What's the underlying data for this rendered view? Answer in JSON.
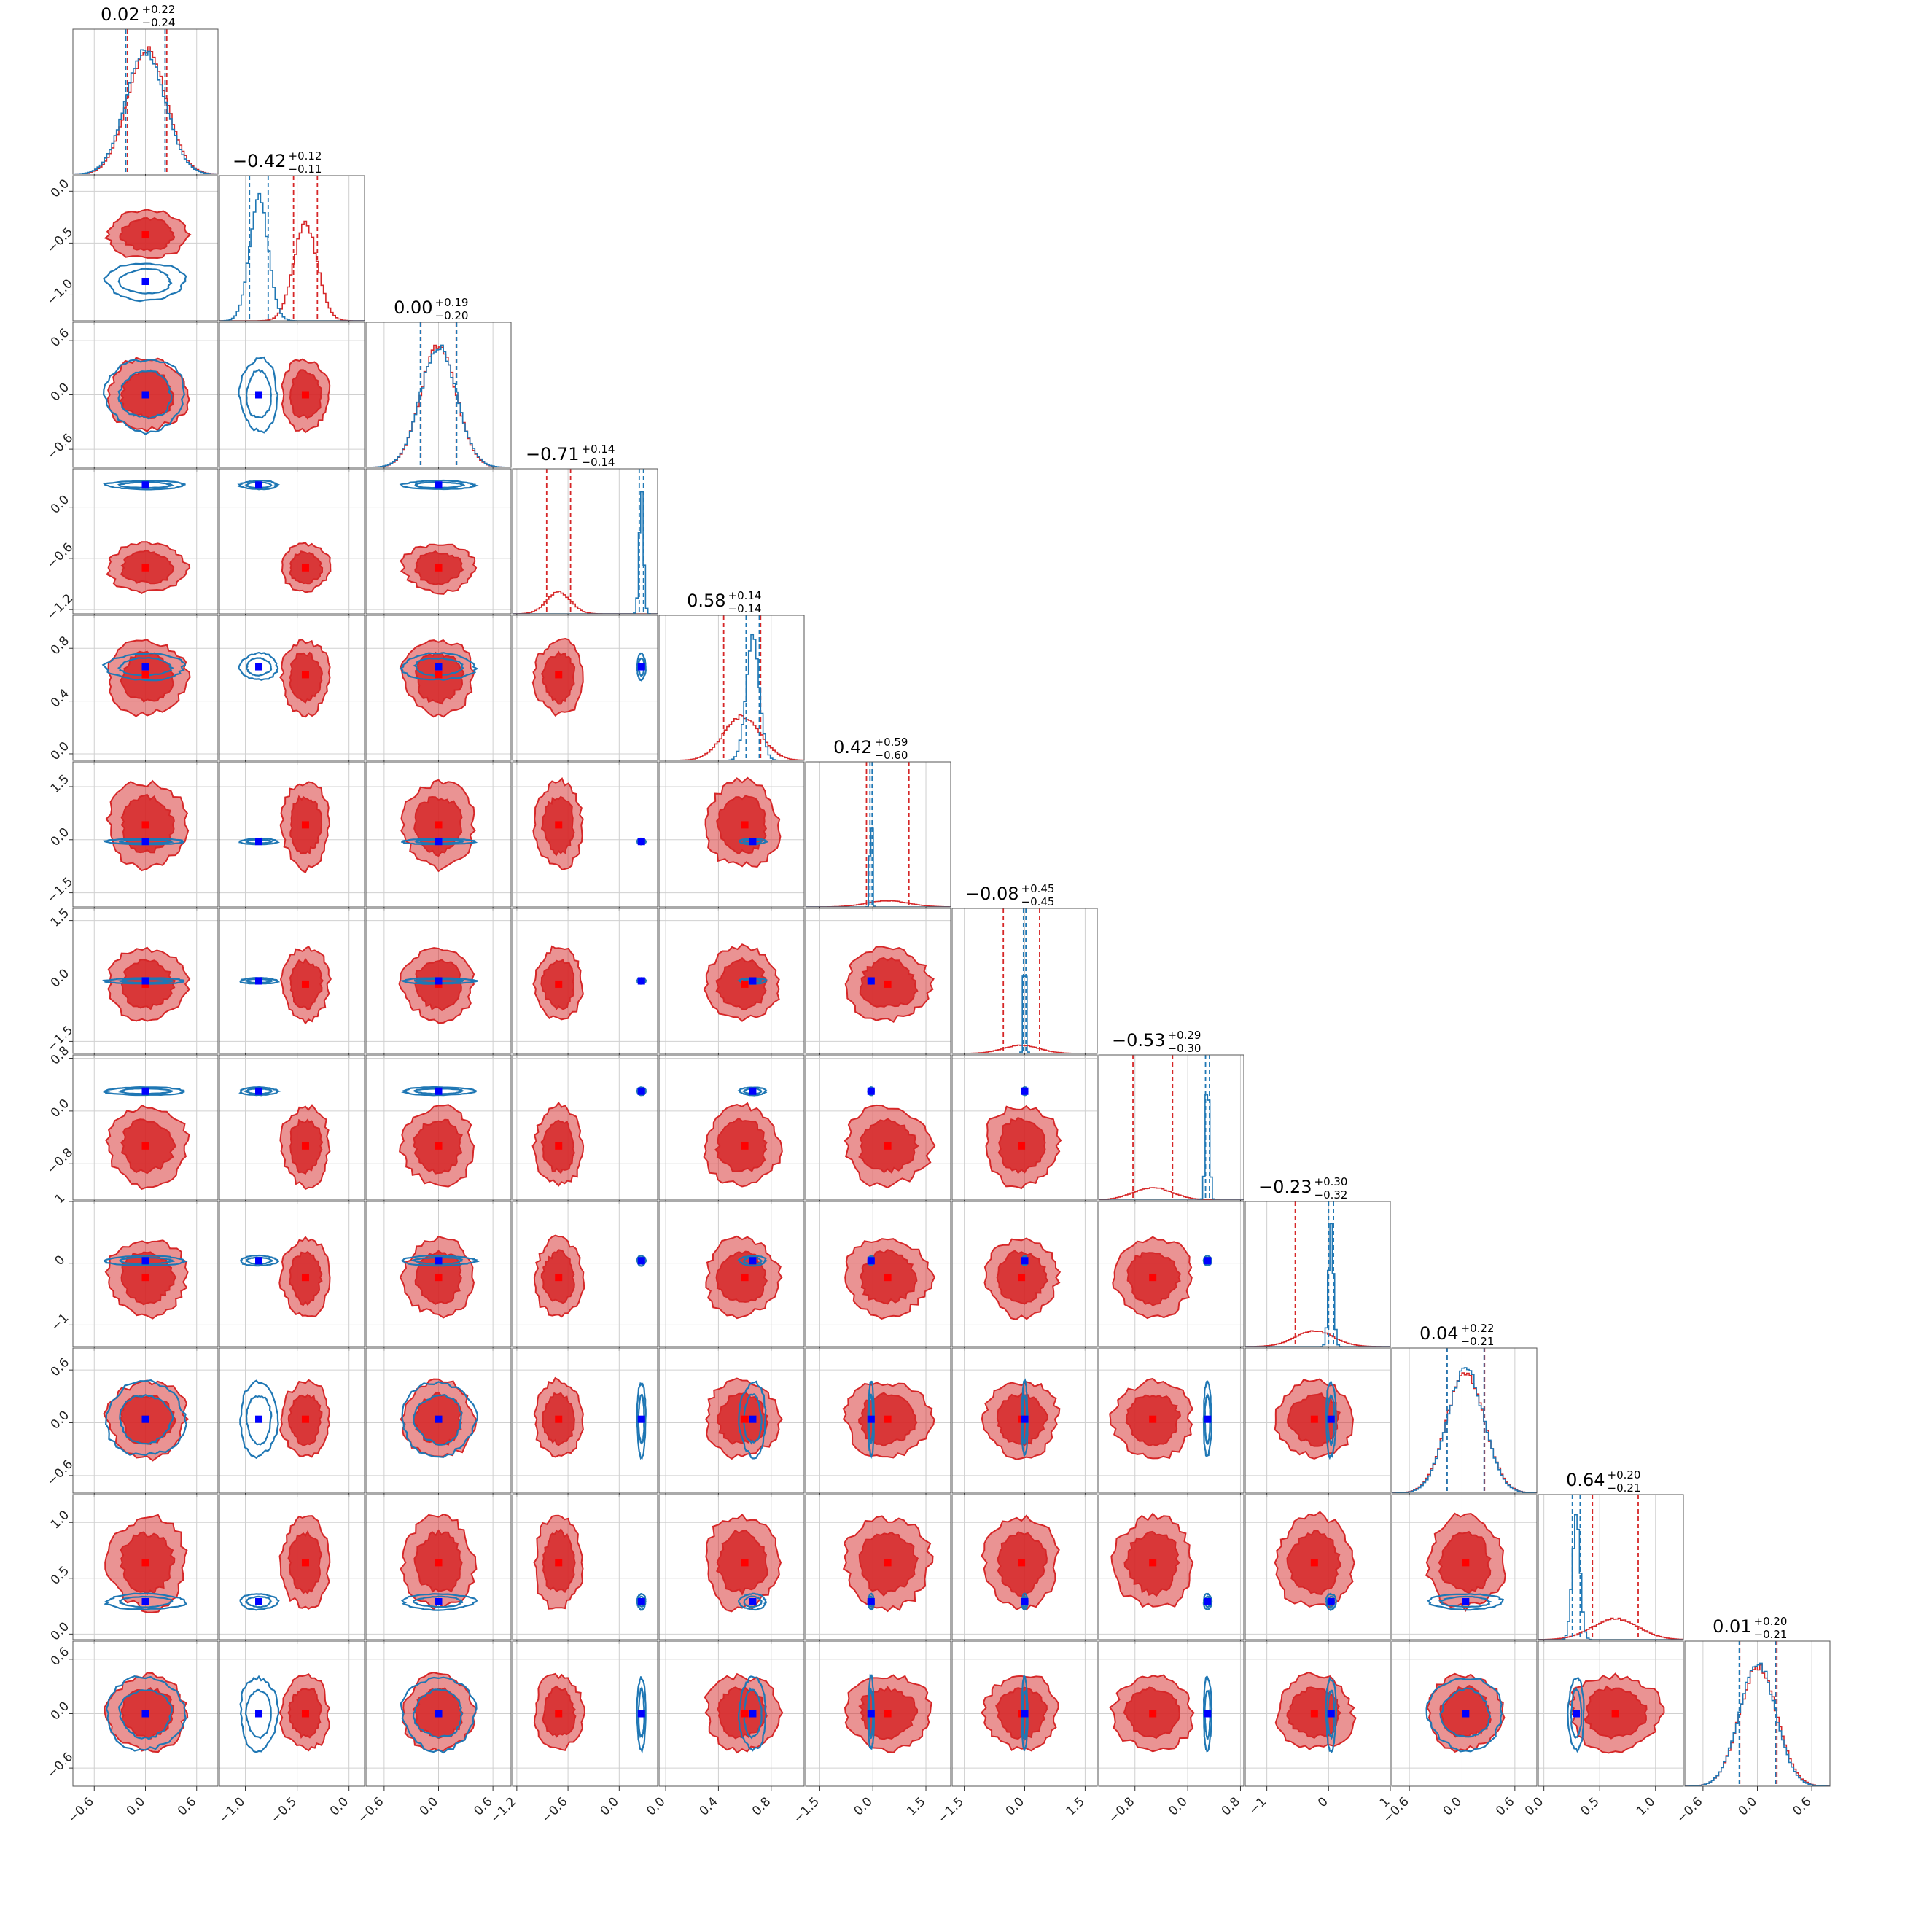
{
  "chart_data": {
    "type": "corner",
    "n_params": 12,
    "colors": {
      "series_a": "#d62728",
      "series_b": "#1f77b4",
      "truth_a": "#ff0000",
      "truth_b": "#0000ff",
      "grid": "#d0d0d0"
    },
    "titles": [
      {
        "value": "0.02",
        "plus": "+0.22",
        "minus": "−0.24"
      },
      {
        "value": "−0.42",
        "plus": "+0.12",
        "minus": "−0.11"
      },
      {
        "value": "0.00",
        "plus": "+0.19",
        "minus": "−0.20"
      },
      {
        "value": "−0.71",
        "plus": "+0.14",
        "minus": "−0.14"
      },
      {
        "value": "0.58",
        "plus": "+0.14",
        "minus": "−0.14"
      },
      {
        "value": "0.42",
        "plus": "+0.59",
        "minus": "−0.60"
      },
      {
        "value": "−0.08",
        "plus": "+0.45",
        "minus": "−0.45"
      },
      {
        "value": "−0.53",
        "plus": "+0.29",
        "minus": "−0.30"
      },
      {
        "value": "−0.23",
        "plus": "+0.30",
        "minus": "−0.32"
      },
      {
        "value": "0.04",
        "plus": "+0.22",
        "minus": "−0.21"
      },
      {
        "value": "0.64",
        "plus": "+0.20",
        "minus": "−0.21"
      },
      {
        "value": "0.01",
        "plus": "+0.20",
        "minus": "−0.21"
      }
    ],
    "params": [
      {
        "range": [
          -0.85,
          0.85
        ],
        "ticks": [
          -0.6,
          0.0,
          0.6
        ],
        "tick_labels": [
          "−0.6",
          "0.0",
          "0.6"
        ],
        "a": {
          "mean": 0.02,
          "sd": 0.23
        },
        "b": {
          "mean": 0.0,
          "sd": 0.23
        },
        "truth_a": 0.0,
        "truth_b": 0.0
      },
      {
        "range": [
          -1.25,
          0.15
        ],
        "ticks": [
          -1.0,
          -0.5,
          0.0
        ],
        "tick_labels": [
          "−1.0",
          "−0.5",
          "0.0"
        ],
        "a": {
          "mean": -0.42,
          "sd": 0.115
        },
        "b": {
          "mean": -0.87,
          "sd": 0.09
        },
        "truth_a": -0.42,
        "truth_b": -0.87
      },
      {
        "range": [
          -0.8,
          0.8
        ],
        "ticks": [
          -0.6,
          0.0,
          0.6
        ],
        "tick_labels": [
          "−0.6",
          "0.0",
          "0.6"
        ],
        "a": {
          "mean": 0.0,
          "sd": 0.195
        },
        "b": {
          "mean": 0.0,
          "sd": 0.2
        },
        "truth_a": 0.0,
        "truth_b": 0.0
      },
      {
        "range": [
          -1.25,
          0.45
        ],
        "ticks": [
          -1.2,
          -0.6,
          0.0
        ],
        "tick_labels": [
          "−1.2",
          "−0.6",
          "0.0"
        ],
        "a": {
          "mean": -0.71,
          "sd": 0.14
        },
        "b": {
          "mean": 0.26,
          "sd": 0.025
        },
        "truth_a": -0.71,
        "truth_b": 0.26
      },
      {
        "range": [
          -0.05,
          1.05
        ],
        "ticks": [
          0.0,
          0.4,
          0.8
        ],
        "tick_labels": [
          "0.0",
          "0.4",
          "0.8"
        ],
        "a": {
          "mean": 0.58,
          "sd": 0.14
        },
        "b": {
          "mean": 0.66,
          "sd": 0.05
        },
        "truth_a": 0.6,
        "truth_b": 0.66
      },
      {
        "range": [
          -1.9,
          2.2
        ],
        "ticks": [
          -1.5,
          0.0,
          1.5
        ],
        "tick_labels": [
          "−1.5",
          "0.0",
          "1.5"
        ],
        "a": {
          "mean": 0.42,
          "sd": 0.6
        },
        "b": {
          "mean": -0.05,
          "sd": 0.03
        },
        "truth_a": 0.42,
        "truth_b": -0.05
      },
      {
        "range": [
          -1.8,
          1.8
        ],
        "ticks": [
          -1.5,
          0.0,
          1.5
        ],
        "tick_labels": [
          "−1.5",
          "0.0",
          "1.5"
        ],
        "a": {
          "mean": -0.08,
          "sd": 0.45
        },
        "b": {
          "mean": 0.0,
          "sd": 0.03
        },
        "truth_a": -0.08,
        "truth_b": 0.0
      },
      {
        "range": [
          -1.35,
          0.85
        ],
        "ticks": [
          -0.8,
          0.0,
          0.8
        ],
        "tick_labels": [
          "−0.8",
          "0.0",
          "0.8"
        ],
        "a": {
          "mean": -0.53,
          "sd": 0.3
        },
        "b": {
          "mean": 0.3,
          "sd": 0.03
        },
        "truth_a": -0.53,
        "truth_b": 0.3
      },
      {
        "range": [
          -1.35,
          1.0
        ],
        "ticks": [
          -1,
          0,
          1
        ],
        "tick_labels": [
          "−1",
          "0",
          "1"
        ],
        "a": {
          "mean": -0.23,
          "sd": 0.31
        },
        "b": {
          "mean": 0.04,
          "sd": 0.04
        },
        "truth_a": -0.23,
        "truth_b": 0.04
      },
      {
        "range": [
          -0.8,
          0.85
        ],
        "ticks": [
          -0.6,
          0.0,
          0.6
        ],
        "tick_labels": [
          "−0.6",
          "0.0",
          "0.6"
        ],
        "a": {
          "mean": 0.04,
          "sd": 0.215
        },
        "b": {
          "mean": 0.04,
          "sd": 0.21
        },
        "truth_a": 0.04,
        "truth_b": 0.04
      },
      {
        "range": [
          -0.05,
          1.25
        ],
        "ticks": [
          0.0,
          0.5,
          1.0
        ],
        "tick_labels": [
          "0.0",
          "0.5",
          "1.0"
        ],
        "a": {
          "mean": 0.64,
          "sd": 0.205
        },
        "b": {
          "mean": 0.29,
          "sd": 0.035
        },
        "truth_a": 0.64,
        "truth_b": 0.29
      },
      {
        "range": [
          -0.8,
          0.8
        ],
        "ticks": [
          -0.6,
          0.0,
          0.6
        ],
        "tick_labels": [
          "−0.6",
          "0.0",
          "0.6"
        ],
        "a": {
          "mean": 0.01,
          "sd": 0.205
        },
        "b": {
          "mean": 0.0,
          "sd": 0.2
        },
        "truth_a": 0.0,
        "truth_b": 0.0
      }
    ]
  }
}
